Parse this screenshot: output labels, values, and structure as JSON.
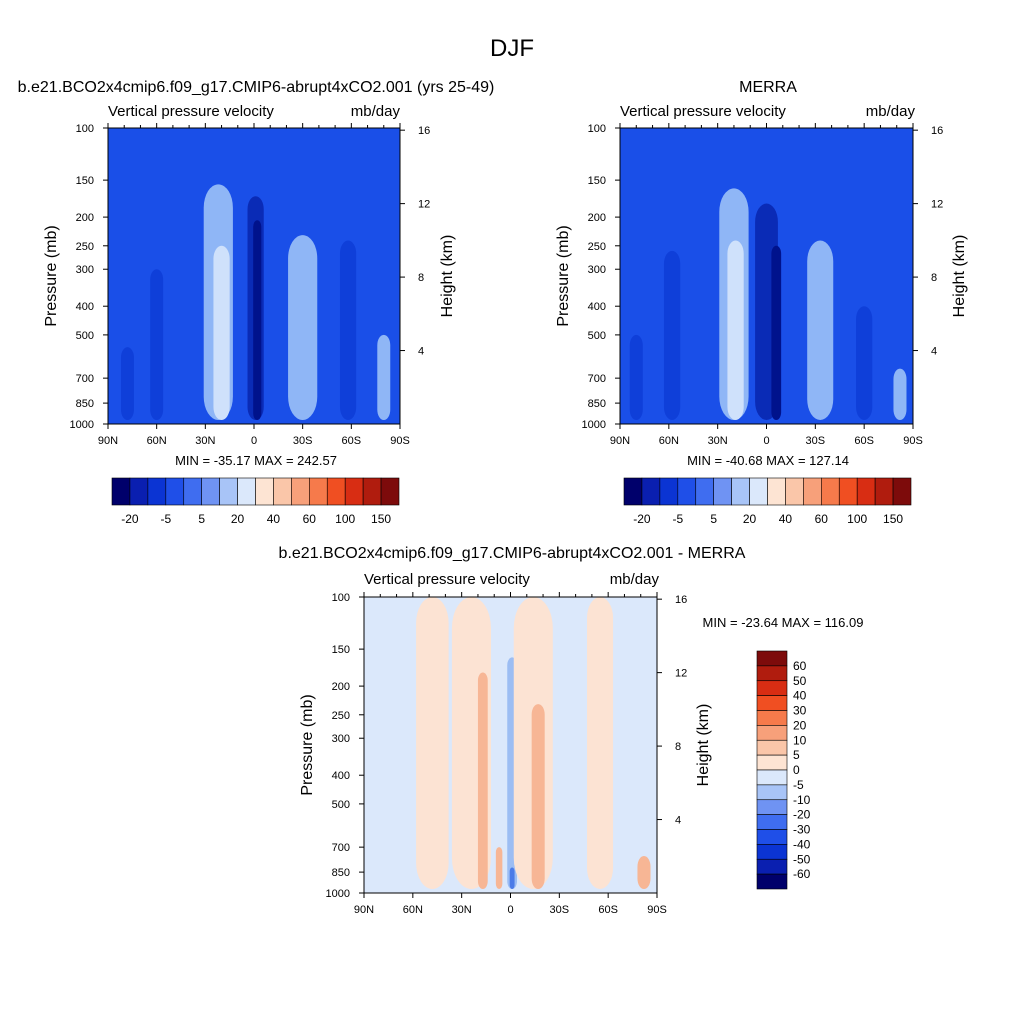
{
  "figure_title": "DJF",
  "chart_data": [
    {
      "type": "heatmap",
      "id": "model",
      "title": "b.e21.BCO2x4cmip6.f09_g17.CMIP6-abrupt4xCO2.001 (yrs 25-49)",
      "left_string": "Vertical pressure velocity",
      "right_string": "mb/day",
      "ylabel": "Pressure (mb)",
      "ylabel_right": "Height (km)",
      "xticks": [
        "90N",
        "60N",
        "30N",
        "0",
        "30S",
        "60S",
        "90S"
      ],
      "yticks": [
        "100",
        "150",
        "200",
        "250",
        "300",
        "400",
        "500",
        "700",
        "850",
        "1000"
      ],
      "yticks_right": [
        "16",
        "12",
        "8",
        "4"
      ],
      "stats": "MIN = -35.17  MAX = 242.57",
      "colorbar": {
        "orientation": "horizontal",
        "labels": [
          "-20",
          "-5",
          "5",
          "20",
          "40",
          "60",
          "100",
          "150"
        ]
      },
      "field": {
        "base": "#1a4fe8",
        "bands": [
          {
            "lat": -78,
            "width": 4,
            "p_top": 550,
            "level": "#0f3fd9"
          },
          {
            "lat": -60,
            "width": 4,
            "p_top": 300,
            "level": "#0f3fd9"
          },
          {
            "lat": -22,
            "width": 9,
            "p_top": 155,
            "level": "#8fb6f6"
          },
          {
            "lat": -20,
            "width": 5,
            "p_top": 250,
            "level": "#cfe1fb"
          },
          {
            "lat": 1,
            "width": 5,
            "p_top": 170,
            "level": "#0a2bb6"
          },
          {
            "lat": 2,
            "width": 2.5,
            "p_top": 205,
            "level": "#00128c"
          },
          {
            "lat": 30,
            "width": 9,
            "p_top": 230,
            "level": "#8fb6f6"
          },
          {
            "lat": 58,
            "width": 5,
            "p_top": 240,
            "level": "#0f3fd9"
          },
          {
            "lat": 80,
            "width": 4,
            "p_top": 500,
            "level": "#8fb6f6"
          }
        ]
      }
    },
    {
      "type": "heatmap",
      "id": "obs",
      "title": "MERRA",
      "left_string": "Vertical pressure velocity",
      "right_string": "mb/day",
      "ylabel": "Pressure (mb)",
      "ylabel_right": "Height (km)",
      "xticks": [
        "90N",
        "60N",
        "30N",
        "0",
        "30S",
        "60S",
        "90S"
      ],
      "yticks": [
        "100",
        "150",
        "200",
        "250",
        "300",
        "400",
        "500",
        "700",
        "850",
        "1000"
      ],
      "yticks_right": [
        "16",
        "12",
        "8",
        "4"
      ],
      "stats": "MIN = -40.68  MAX = 127.14",
      "colorbar": {
        "orientation": "horizontal",
        "labels": [
          "-20",
          "-5",
          "5",
          "20",
          "40",
          "60",
          "100",
          "150"
        ]
      },
      "field": {
        "base": "#1a4fe8",
        "bands": [
          {
            "lat": -80,
            "width": 4,
            "p_top": 500,
            "level": "#0f3fd9"
          },
          {
            "lat": -58,
            "width": 5,
            "p_top": 260,
            "level": "#0f3fd9"
          },
          {
            "lat": -20,
            "width": 9,
            "p_top": 160,
            "level": "#8fb6f6"
          },
          {
            "lat": -19,
            "width": 5,
            "p_top": 240,
            "level": "#cfe1fb"
          },
          {
            "lat": 0,
            "width": 7,
            "p_top": 180,
            "level": "#0a2bb6"
          },
          {
            "lat": 6,
            "width": 3,
            "p_top": 250,
            "level": "#00128c"
          },
          {
            "lat": 33,
            "width": 8,
            "p_top": 240,
            "level": "#8fb6f6"
          },
          {
            "lat": 60,
            "width": 5,
            "p_top": 400,
            "level": "#0f3fd9"
          },
          {
            "lat": 82,
            "width": 4,
            "p_top": 650,
            "level": "#8fb6f6"
          }
        ]
      }
    },
    {
      "type": "heatmap",
      "id": "diff",
      "title": "b.e21.BCO2x4cmip6.f09_g17.CMIP6-abrupt4xCO2.001 - MERRA",
      "left_string": "Vertical pressure velocity",
      "right_string": "mb/day",
      "ylabel": "Pressure (mb)",
      "ylabel_right": "Height (km)",
      "xticks": [
        "90N",
        "60N",
        "30N",
        "0",
        "30S",
        "60S",
        "90S"
      ],
      "yticks": [
        "100",
        "150",
        "200",
        "250",
        "300",
        "400",
        "500",
        "700",
        "850",
        "1000"
      ],
      "yticks_right": [
        "16",
        "12",
        "8",
        "4"
      ],
      "stats": "MIN = -23.64  MAX = 116.09",
      "colorbar": {
        "orientation": "vertical",
        "labels": [
          "60",
          "50",
          "40",
          "30",
          "20",
          "10",
          "5",
          "0",
          "-5",
          "-10",
          "-20",
          "-30",
          "-40",
          "-50",
          "-60"
        ]
      },
      "field": {
        "base": "#dbe8fb",
        "bands": [
          {
            "lat": -48,
            "width": 10,
            "p_top": 100,
            "level": "#fce3d3"
          },
          {
            "lat": -24,
            "width": 12,
            "p_top": 100,
            "level": "#fce3d3"
          },
          {
            "lat": -17,
            "width": 3,
            "p_top": 180,
            "level": "#f7b695"
          },
          {
            "lat": -7,
            "width": 2,
            "p_top": 700,
            "level": "#f7b695"
          },
          {
            "lat": 1,
            "width": 3,
            "p_top": 160,
            "level": "#9cbdf3"
          },
          {
            "lat": 1,
            "width": 1.5,
            "p_top": 820,
            "level": "#4b7be8"
          },
          {
            "lat": 14,
            "width": 12,
            "p_top": 100,
            "level": "#fce3d3"
          },
          {
            "lat": 17,
            "width": 4,
            "p_top": 230,
            "level": "#f7b695"
          },
          {
            "lat": 55,
            "width": 8,
            "p_top": 100,
            "level": "#fce3d3"
          },
          {
            "lat": 82,
            "width": 4,
            "p_top": 750,
            "level": "#f7b695"
          }
        ]
      }
    }
  ],
  "palettes": {
    "horizontal": [
      "#00006b",
      "#0a1fb0",
      "#0b34d3",
      "#1f4fe8",
      "#3f6df0",
      "#6f93f3",
      "#a8c4f7",
      "#dbe8fb",
      "#fde4d3",
      "#fac6a9",
      "#f7a07a",
      "#f67a4b",
      "#f04f22",
      "#d82d13",
      "#b01c0e",
      "#7d0b0b"
    ],
    "vertical": [
      "#7d0b0b",
      "#b01c0e",
      "#d82d13",
      "#f04f22",
      "#f67a4b",
      "#f7a07a",
      "#fac6a9",
      "#fde4d3",
      "#dbe8fb",
      "#a8c4f7",
      "#6f93f3",
      "#3f6df0",
      "#1f4fe8",
      "#0b34d3",
      "#0a1fb0",
      "#00006b"
    ]
  }
}
